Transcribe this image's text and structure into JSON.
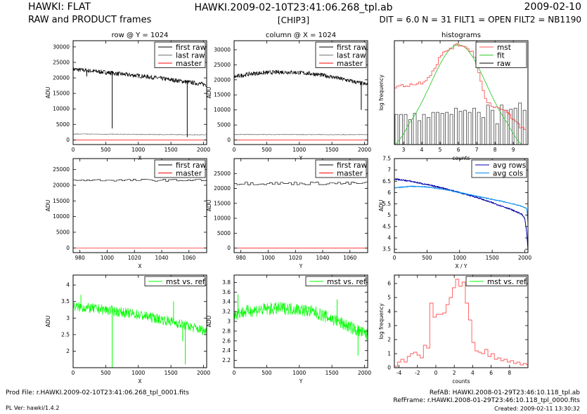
{
  "header": {
    "title": "HAWKI: FLAT",
    "subtitle": "RAW and PRODUCT frames",
    "filename": "HAWKI.2009-02-10T23:41:06.268_tpl.ab",
    "chip": "[CHIP3]",
    "date": "2009-02-10",
    "params": "DIT = 6.0 N = 31 FILT1 = OPEN FILT2 = NB1190"
  },
  "footer": {
    "prod_file": "Prod File: r.HAWKI.2009-02-10T23:41:06.268_tpl_0001.fits",
    "pl_ver": "PL Ver: hawki/1.4.2",
    "refab": "RefAB: HAWKI.2008-01-29T23:46:10.118_tpl.ab",
    "refframe": "RefFrame: r.HAWKI.2008-01-29T23:46:10.118_tpl_0000.fits",
    "created": "Created: 2009-02-11 13:30:32"
  },
  "colors": {
    "first_raw": "#000000",
    "last_raw": "#777777",
    "master": "#ff0000",
    "fit": "#33cc33",
    "mst_vs_ref": "#00ff00",
    "avg_rows": "#0000aa",
    "avg_cols": "#0088ee",
    "hist_mst": "#ff5555"
  },
  "chart_data": [
    {
      "id": "row-full",
      "type": "line",
      "title": "row @ Y = 1024",
      "xlabel": "X",
      "ylabel": "ADU",
      "xlim": [
        0,
        2048
      ],
      "ylim": [
        -1500,
        32000
      ],
      "xticks": [
        0,
        500,
        1000,
        1500,
        2000
      ],
      "yticks": [
        0,
        5000,
        10000,
        15000,
        20000,
        25000,
        30000
      ],
      "legend": [
        "first raw",
        "last raw",
        "master"
      ],
      "legend_position": "top-right",
      "series": [
        {
          "name": "first raw",
          "x": [
            0,
            250,
            500,
            750,
            1000,
            1250,
            1500,
            1750,
            2048
          ],
          "y": [
            22800,
            22300,
            21800,
            21200,
            20700,
            20100,
            19400,
            18700,
            17800
          ],
          "noise": 700
        },
        {
          "name": "last raw",
          "x": [
            0,
            2048
          ],
          "y": [
            1900,
            1650
          ],
          "noise": 120
        },
        {
          "name": "master",
          "x": [
            0,
            2048
          ],
          "y": [
            0,
            0
          ],
          "noise": 0
        }
      ],
      "spikes": [
        {
          "x": 210,
          "y": 20500
        },
        {
          "x": 600,
          "y": 3700
        },
        {
          "x": 1750,
          "y": 900
        }
      ]
    },
    {
      "id": "col-full",
      "type": "line",
      "title": "column @ X = 1024",
      "xlabel": "Y",
      "ylabel": "ADU",
      "xlim": [
        0,
        2048
      ],
      "ylim": [
        -1500,
        33000
      ],
      "xticks": [
        0,
        500,
        1000,
        1500,
        2000
      ],
      "yticks": [
        0,
        5000,
        10000,
        15000,
        20000,
        25000,
        30000
      ],
      "legend": [
        "first raw",
        "last raw",
        "master"
      ],
      "legend_position": "top-right",
      "series": [
        {
          "name": "first raw",
          "x": [
            0,
            250,
            500,
            750,
            1000,
            1250,
            1500,
            1750,
            2048
          ],
          "y": [
            21000,
            22000,
            22400,
            22600,
            22400,
            21900,
            21000,
            19800,
            18400
          ],
          "noise": 700
        },
        {
          "name": "last raw",
          "x": [
            0,
            2048
          ],
          "y": [
            1850,
            1800
          ],
          "noise": 120
        },
        {
          "name": "master",
          "x": [
            0,
            2048
          ],
          "y": [
            0,
            0
          ],
          "noise": 0
        }
      ],
      "spikes": [
        {
          "x": 1950,
          "y": 10000
        }
      ]
    },
    {
      "id": "hist-top",
      "type": "bar",
      "title": "histograms",
      "xlabel": "counts",
      "ylabel": "log frequency",
      "xlim": [
        2.5,
        9.8
      ],
      "ylim": [
        0,
        10
      ],
      "xticks": [
        3,
        4,
        5,
        6,
        7,
        8,
        9
      ],
      "yticks": [],
      "legend": [
        "mst",
        "fit",
        "raw"
      ],
      "legend_position": "top-right",
      "raw_bars": {
        "x0": 2.5,
        "width": 0.25,
        "heights": [
          2.9,
          2.9,
          2.9,
          2.4,
          3.0,
          2.3,
          2.9,
          2.6,
          3.1,
          3.1,
          3.0,
          3.1,
          2.9,
          3.5,
          3.2,
          3.3,
          3.1,
          3.5,
          3.1,
          2.6,
          3.8,
          3.3,
          2.0,
          3.8,
          3.3,
          3.4,
          3.5,
          4.0,
          3.3
        ]
      },
      "mst": {
        "x": [
          2.5,
          3.0,
          3.5,
          4.0,
          4.3,
          4.6,
          4.9,
          5.2,
          5.5,
          5.8,
          6.1,
          6.4,
          6.7,
          7.0,
          7.2,
          7.4,
          7.7,
          8.0,
          8.5,
          9.0,
          9.5,
          9.8
        ],
        "y": [
          5.6,
          5.7,
          5.8,
          6.0,
          6.5,
          7.2,
          8.3,
          8.9,
          9.3,
          9.5,
          9.6,
          9.4,
          8.9,
          7.6,
          5.9,
          4.4,
          3.9,
          3.6,
          3.2,
          2.3,
          1.5,
          1.3
        ]
      },
      "fit": {
        "mu": 6.0,
        "sigma": 1.45,
        "peak": 9.6
      }
    },
    {
      "id": "row-zoom",
      "type": "line",
      "xlabel": "X",
      "ylabel": "ADU",
      "xlim": [
        975,
        1073
      ],
      "ylim": [
        -1500,
        28500
      ],
      "xticks": [
        980,
        1000,
        1020,
        1040,
        1060
      ],
      "yticks": [
        0,
        5000,
        10000,
        15000,
        20000,
        25000
      ],
      "legend": [
        "first raw",
        "master"
      ],
      "legend_position": "top-right",
      "series": [
        {
          "name": "first raw",
          "x": [
            975,
            1073
          ],
          "y": [
            21600,
            21600
          ],
          "noise": 500,
          "step": 1
        },
        {
          "name": "master",
          "x": [
            975,
            1073
          ],
          "y": [
            0,
            0
          ],
          "noise": 0
        }
      ]
    },
    {
      "id": "col-zoom",
      "type": "line",
      "xlabel": "Y",
      "ylabel": "ADU",
      "xlim": [
        975,
        1073
      ],
      "ylim": [
        -1500,
        30000
      ],
      "xticks": [
        980,
        1000,
        1020,
        1040,
        1060
      ],
      "yticks": [
        0,
        5000,
        10000,
        15000,
        20000,
        25000
      ],
      "legend": [
        "first raw",
        "master"
      ],
      "legend_position": "top-right",
      "series": [
        {
          "name": "first raw",
          "x": [
            975,
            1073
          ],
          "y": [
            21700,
            21700
          ],
          "noise": 700,
          "step": 1
        },
        {
          "name": "master",
          "x": [
            975,
            1073
          ],
          "y": [
            0,
            0
          ],
          "noise": 0
        }
      ]
    },
    {
      "id": "avg",
      "type": "line",
      "xlabel": "X / Y",
      "ylabel": "ADU",
      "xlim": [
        0,
        2048
      ],
      "ylim": [
        3.35,
        7.5
      ],
      "xticks": [
        0,
        500,
        1000,
        1500,
        2000
      ],
      "yticks": [
        3.5,
        4,
        4.5,
        5,
        5.5,
        6,
        6.5,
        7,
        7.5
      ],
      "legend": [
        "avg rows",
        "avg cols"
      ],
      "legend_position": "top-right",
      "series": [
        {
          "name": "avg rows",
          "x": [
            0,
            250,
            500,
            750,
            1000,
            1250,
            1500,
            1750,
            1950,
            2000,
            2030,
            2048
          ],
          "y": [
            6.6,
            6.5,
            6.35,
            6.2,
            6.0,
            5.8,
            5.55,
            5.3,
            5.05,
            4.85,
            4.2,
            3.5
          ],
          "noise": 0.03
        },
        {
          "name": "avg cols",
          "x": [
            0,
            250,
            500,
            750,
            1000,
            1250,
            1500,
            1750,
            1950,
            2030,
            2048
          ],
          "y": [
            6.2,
            6.28,
            6.25,
            6.15,
            6.0,
            5.85,
            5.7,
            5.55,
            5.4,
            5.3,
            4.7
          ],
          "noise": 0.02
        }
      ]
    },
    {
      "id": "ratio-row",
      "type": "line",
      "xlabel": "X",
      "ylabel": "ADU",
      "xlim": [
        0,
        2048
      ],
      "ylim": [
        1.5,
        4.3
      ],
      "xticks": [
        0,
        500,
        1000,
        1500,
        2000
      ],
      "yticks": [
        2,
        2.5,
        3,
        3.5,
        4
      ],
      "legend": [
        "mst vs. ref"
      ],
      "legend_position": "top-right",
      "series": [
        {
          "name": "mst vs. ref",
          "x": [
            0,
            500,
            1000,
            1500,
            2048
          ],
          "y": [
            3.35,
            3.25,
            3.1,
            2.9,
            2.6
          ],
          "noise": 0.15
        }
      ],
      "spikes": [
        {
          "x": 120,
          "y": 3.7
        },
        {
          "x": 600,
          "y": 1.5
        },
        {
          "x": 1540,
          "y": 3.5
        },
        {
          "x": 1680,
          "y": 2.3
        },
        {
          "x": 1720,
          "y": 1.6
        }
      ]
    },
    {
      "id": "ratio-col",
      "type": "line",
      "xlabel": "Y",
      "ylabel": "ADU",
      "xlim": [
        0,
        2048
      ],
      "ylim": [
        2.05,
        3.95
      ],
      "xticks": [
        0,
        500,
        1000,
        1500,
        2000
      ],
      "yticks": [
        2.2,
        2.4,
        2.6,
        2.8,
        3,
        3.2,
        3.4,
        3.6,
        3.8
      ],
      "legend": [
        "mst vs. ref"
      ],
      "legend_position": "top-right",
      "series": [
        {
          "name": "mst vs. ref",
          "x": [
            0,
            250,
            500,
            750,
            1000,
            1250,
            1500,
            1750,
            2048
          ],
          "y": [
            3.15,
            3.22,
            3.25,
            3.27,
            3.25,
            3.18,
            3.05,
            2.9,
            2.72
          ],
          "noise": 0.13
        }
      ],
      "spikes": [
        {
          "x": 60,
          "y": 3.55
        },
        {
          "x": 1580,
          "y": 3.45
        },
        {
          "x": 1900,
          "y": 2.3
        }
      ]
    },
    {
      "id": "hist-bottom",
      "type": "line",
      "xlabel": "counts",
      "ylabel": "log frequency",
      "xlim": [
        -4.5,
        10
      ],
      "ylim": [
        0,
        6.6
      ],
      "xticks": [
        -4,
        -2,
        0,
        2,
        4,
        6,
        8
      ],
      "yticks": [
        0,
        1,
        2,
        3,
        4,
        5,
        6
      ],
      "legend": [
        "mst vs. ref"
      ],
      "legend_position": "top-right",
      "steps": {
        "x0": -4.5,
        "width": 0.35,
        "heights": [
          0.1,
          0.4,
          0.6,
          0.4,
          0.8,
          1.0,
          1.1,
          0.9,
          0.7,
          1.6,
          1.4,
          4.6,
          3.6,
          3.8,
          3.8,
          3.9,
          4.5,
          5.0,
          5.7,
          6.3,
          5.8,
          6.1,
          4.6,
          3.4,
          1.8,
          1.2,
          1.1,
          1.0,
          1.3,
          0.8,
          1.0,
          0.6,
          0.7,
          0.5,
          0.6,
          0.4,
          0.5,
          0.3,
          0.4,
          0.2,
          0.3,
          0.2
        ]
      }
    }
  ]
}
